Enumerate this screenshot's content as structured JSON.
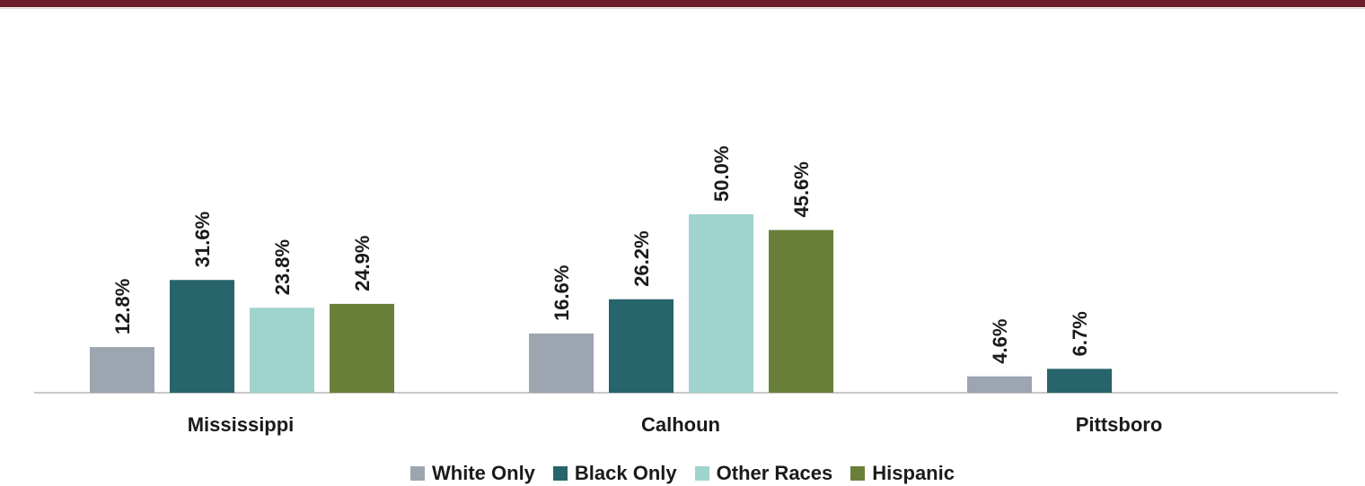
{
  "chart_data": {
    "type": "bar",
    "title": "",
    "xlabel": "",
    "ylabel": "",
    "categories": [
      "Mississippi",
      "Calhoun",
      "Pittsboro"
    ],
    "series": [
      {
        "name": "White Only",
        "color": "#9ca5b0",
        "values": [
          12.8,
          16.6,
          4.6
        ],
        "labels": [
          "12.8%",
          "16.6%",
          "4.6%"
        ]
      },
      {
        "name": "Black Only",
        "color": "#27646b",
        "values": [
          31.6,
          26.2,
          6.7
        ],
        "labels": [
          "31.6%",
          "26.2%",
          "6.7%"
        ]
      },
      {
        "name": "Other Races",
        "color": "#9fd3cd",
        "values": [
          23.8,
          50.0,
          null
        ],
        "labels": [
          "23.8%",
          "50.0%",
          null
        ]
      },
      {
        "name": "Hispanic",
        "color": "#6a803a",
        "values": [
          24.9,
          45.6,
          null
        ],
        "labels": [
          "24.9%",
          "45.6%",
          null
        ]
      }
    ],
    "ylim": [
      0,
      50
    ],
    "grid": false,
    "legend_position": "bottom",
    "accent_color": "#6b1f2a"
  }
}
